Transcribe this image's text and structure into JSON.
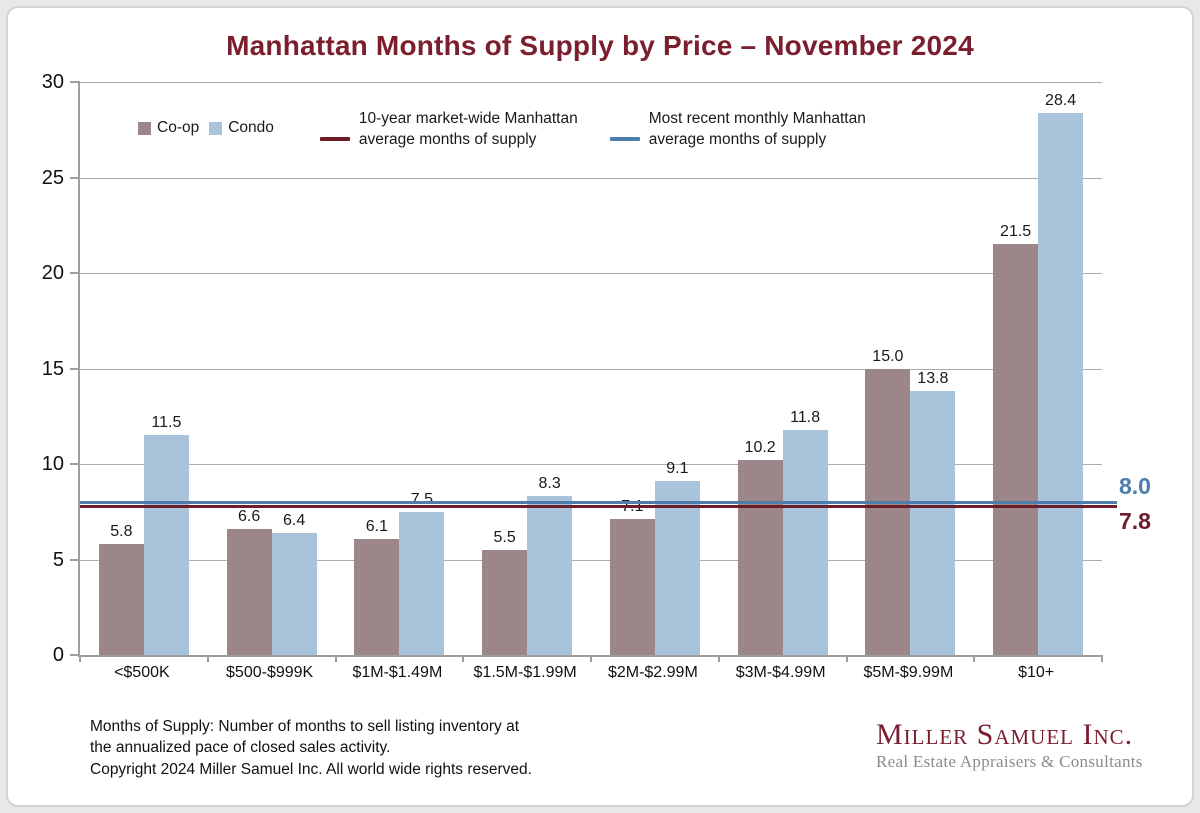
{
  "title": "Manhattan Months of Supply by Price – November 2024",
  "legend": {
    "coop": "Co-op",
    "condo": "Condo",
    "line_10yr": {
      "line1": "10-year market-wide Manhattan",
      "line2": "average months of supply"
    },
    "line_recent": {
      "line1": "Most recent monthly Manhattan",
      "line2": "average months of supply"
    }
  },
  "chart_data": {
    "type": "bar",
    "title": "Manhattan Months of Supply by Price – November 2024",
    "categories": [
      "<$500K",
      "$500-$999K",
      "$1M-$1.49M",
      "$1.5M-$1.99M",
      "$2M-$2.99M",
      "$3M-$4.99M",
      "$5M-$9.99M",
      "$10+"
    ],
    "series": [
      {
        "name": "Co-op",
        "color": "#9d8689",
        "values": [
          5.8,
          6.6,
          6.1,
          5.5,
          7.1,
          10.2,
          15.0,
          21.5
        ]
      },
      {
        "name": "Condo",
        "color": "#a9c4da",
        "values": [
          11.5,
          6.4,
          7.5,
          8.3,
          9.1,
          11.8,
          13.8,
          28.4
        ]
      }
    ],
    "reference_lines": [
      {
        "name": "Most recent monthly Manhattan average months of supply",
        "value": 8.0,
        "label": "8.0",
        "color": "#4d7dad",
        "label_position": "above"
      },
      {
        "name": "10-year market-wide Manhattan average months of supply",
        "value": 7.8,
        "label": "7.8",
        "color": "#6e1c28",
        "label_position": "below"
      }
    ],
    "ylim": [
      0,
      30
    ],
    "yticks": [
      0,
      5,
      10,
      15,
      20,
      25,
      30
    ],
    "grid": true,
    "legend_position": "top",
    "ylabel": "",
    "xlabel": ""
  },
  "footer": {
    "definition_line1": "Months of Supply: Number of months to sell listing inventory at",
    "definition_line2": "the annualized pace of closed sales activity.",
    "copyright": "Copyright 2024 Miller Samuel Inc.  All world wide rights reserved."
  },
  "logo": {
    "name": "Miller Samuel Inc.",
    "tagline": "Real Estate Appraisers & Consultants"
  },
  "colors": {
    "title": "#7b1e2e",
    "coop": "#9d8689",
    "condo": "#a9c4da",
    "line_10yr": "#6e1c28",
    "line_recent": "#4d7dad",
    "logo_name": "#7b1e2e",
    "logo_tagline": "#8c8c8c"
  }
}
